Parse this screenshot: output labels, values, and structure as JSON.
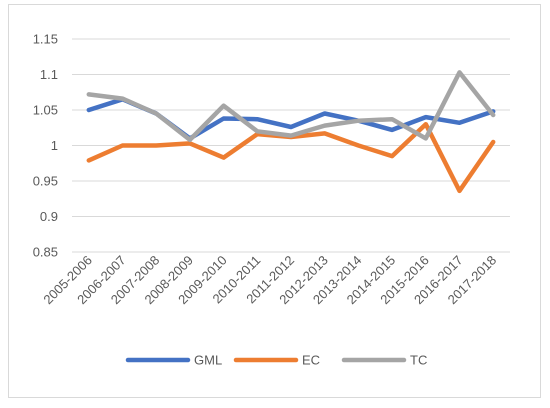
{
  "chart_data": {
    "type": "line",
    "title": "",
    "xlabel": "",
    "ylabel": "",
    "categories": [
      "2005-2006",
      "2006-2007",
      "2007-2008",
      "2008-2009",
      "2009-2010",
      "2010-2011",
      "2011-2012",
      "2012-2013",
      "2013-2014",
      "2014-2015",
      "2015-2016",
      "2016-2017",
      "2017-2018"
    ],
    "ylim": [
      0.85,
      1.15
    ],
    "yticks": [
      "0.85",
      "0.9",
      "0.95",
      "1",
      "1.05",
      "1.1",
      "1.15"
    ],
    "grid": true,
    "legend": "bottom",
    "series": [
      {
        "name": "GML",
        "color": "#4472c4",
        "values": [
          1.05,
          1.065,
          1.045,
          1.01,
          1.038,
          1.037,
          1.026,
          1.045,
          1.035,
          1.022,
          1.04,
          1.032,
          1.048
        ]
      },
      {
        "name": "EC",
        "color": "#ed7d31",
        "values": [
          0.979,
          1.0,
          1.0,
          1.003,
          0.983,
          1.016,
          1.012,
          1.017,
          1.0,
          0.985,
          1.03,
          0.936,
          1.005
        ]
      },
      {
        "name": "TC",
        "color": "#a5a5a5",
        "values": [
          1.072,
          1.066,
          1.045,
          1.008,
          1.056,
          1.02,
          1.014,
          1.028,
          1.035,
          1.037,
          1.01,
          1.103,
          1.043
        ]
      }
    ]
  }
}
